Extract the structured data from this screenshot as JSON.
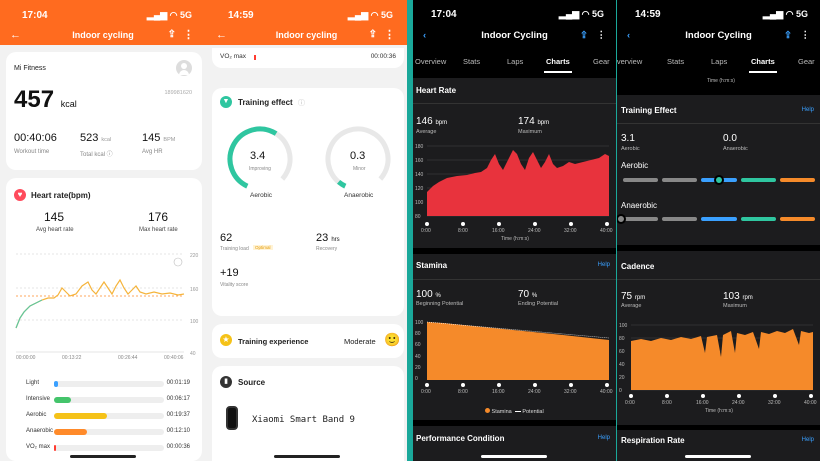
{
  "p1": {
    "status": {
      "time": "17:04",
      "signal": "▂▄▆ ◠ 5G"
    },
    "title": "Indoor cycling",
    "brand": "Mi Fitness",
    "id": "189981620",
    "calories": "457",
    "cal_unit": "kcal",
    "duration": "00:40:06",
    "duration_label": "Workout time",
    "total_cal": "523",
    "total_cal_unit": "kcal",
    "total_cal_label": "Total kcal ⓘ",
    "avg_hr": "145",
    "avg_hr_unit": "BPM",
    "avg_hr_label": "Avg HR",
    "hr_title": "Heart rate(bpm)",
    "hr_avg": "145",
    "hr_avg_label": "Avg heart rate",
    "hr_max": "176",
    "hr_max_label": "Max heart rate",
    "y_ticks": [
      "220",
      "160",
      "100",
      "40"
    ],
    "x_ticks": [
      "00:00:00",
      "00:13:22",
      "00:26:44",
      "00:40:06"
    ],
    "zones": [
      {
        "label": "Light",
        "time": "00:01:19",
        "frac": 0.04,
        "color": "#3aa0ff"
      },
      {
        "label": "Intensive",
        "time": "00:06:17",
        "frac": 0.15,
        "color": "#44c46b"
      },
      {
        "label": "Aerobic",
        "time": "00:19:37",
        "frac": 0.48,
        "color": "#f5c218"
      },
      {
        "label": "Anaerobic",
        "time": "00:12:10",
        "frac": 0.3,
        "color": "#ff8a2a"
      },
      {
        "label": "VO₂ max",
        "time": "00:00:36",
        "frac": 0.015,
        "color": "#ff3b30"
      }
    ]
  },
  "p2": {
    "status": {
      "time": "14:59",
      "signal": "▂▄▆ ◠ 5G"
    },
    "title": "Indoor cycling",
    "vo2_label": "VO₂ max",
    "vo2_time": "00:00:36",
    "te_title": "Training effect",
    "aero_val": "3.4",
    "aero_sub": "Improving",
    "aero_label": "Aerobic",
    "anaero_val": "0.3",
    "anaero_sub": "Minor",
    "anaero_label": "Anaerobic",
    "load": "62",
    "load_label": "Training load",
    "load_badge": "Optimal",
    "recovery": "23",
    "recovery_unit": "hrs",
    "recovery_label": "Recovery",
    "vitality": "+19",
    "vitality_label": "Vitality score",
    "exp_title": "Training experience",
    "exp_value": "Moderate",
    "exp_emoji": "🙂",
    "source_title": "Source",
    "source_device": "Xiaomi Smart Band 9"
  },
  "p3": {
    "status": {
      "time": "17:04",
      "signal": "▂▄▆ ◠ 5G"
    },
    "title": "Indoor Cycling",
    "tabs": [
      "Overview",
      "Stats",
      "Laps",
      "Charts",
      "Gear"
    ],
    "hr_title": "Heart Rate",
    "hr_avg": "146",
    "hr_avg_unit": "bpm",
    "hr_avg_label": "Average",
    "hr_max": "174",
    "hr_max_unit": "bpm",
    "hr_max_label": "Maximum",
    "hr_yticks": [
      "180",
      "160",
      "140",
      "120",
      "100",
      "80"
    ],
    "x_ticks": [
      "0:00",
      "8:00",
      "16:00",
      "24:00",
      "32:00",
      "40:00"
    ],
    "x_label": "Time (h:m:s)",
    "stamina_title": "Stamina",
    "help": "Help",
    "st_begin": "100",
    "st_begin_unit": "%",
    "st_begin_label": "Beginning Potential",
    "st_end": "70",
    "st_end_unit": "%",
    "st_end_label": "Ending Potential",
    "st_yticks": [
      "100",
      "80",
      "60",
      "40",
      "20",
      "0"
    ],
    "legend": [
      "Stamina",
      "Potential"
    ],
    "perf_title": "Performance Condition"
  },
  "p4": {
    "status": {
      "time": "14:59",
      "signal": "▂▄▆ ◠ 5G"
    },
    "title": "Indoor Cycling",
    "tabs": [
      "Overview",
      "Stats",
      "Laps",
      "Charts",
      "Gear"
    ],
    "time_label": "Time (h:m:s)",
    "te_title": "Training Effect",
    "help": "Help",
    "aero": "3.1",
    "aero_label": "Aerobic",
    "anaero": "0.0",
    "anaero_label": "Anaerobic",
    "aero_row": "Aerobic",
    "anaero_row": "Anaerobic",
    "aero_level": 0.5,
    "anaero_level": 0.0,
    "cad_title": "Cadence",
    "cad_avg": "75",
    "cad_avg_unit": "rpm",
    "cad_avg_label": "Average",
    "cad_max": "103",
    "cad_max_unit": "rpm",
    "cad_max_label": "Maximum",
    "cad_yticks": [
      "100",
      "80",
      "60",
      "40",
      "20",
      "0"
    ],
    "x_ticks": [
      "0:00",
      "8:00",
      "16:00",
      "24:00",
      "32:00",
      "40:00"
    ],
    "x_label": "Time (h:m:s)",
    "resp_title": "Respiration Rate"
  },
  "colors": {
    "mi_orange": "#ff6b1f",
    "garmin_red": "#e8333d",
    "garmin_orange": "#f58a2a",
    "teal": "#2fc6a0",
    "garmin_blue": "#3aa0ff"
  }
}
